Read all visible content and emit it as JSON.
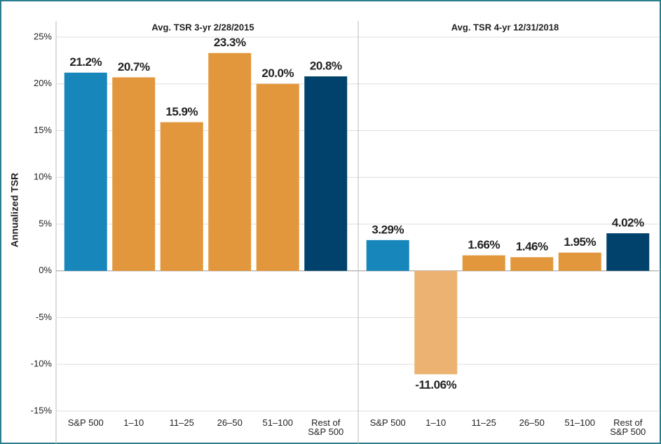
{
  "chart_data": {
    "type": "bar",
    "ylabel": "Annualized TSR",
    "ylim": [
      -15,
      25
    ],
    "yticks": [
      {
        "value": -15,
        "label": "-15%"
      },
      {
        "value": -10,
        "label": "-10%"
      },
      {
        "value": -5,
        "label": "-5%"
      },
      {
        "value": 0,
        "label": "0%"
      },
      {
        "value": 5,
        "label": "5%"
      },
      {
        "value": 10,
        "label": "10%"
      },
      {
        "value": 15,
        "label": "15%"
      },
      {
        "value": 20,
        "label": "20%"
      },
      {
        "value": 25,
        "label": "25%"
      }
    ],
    "grid": true,
    "categories": [
      "S&P 500",
      "1–10",
      "11–25",
      "26–50",
      "51–100",
      "Rest of S&P 500"
    ],
    "panels": [
      {
        "title": "Avg. TSR 3-yr 2/28/2015",
        "values": [
          21.2,
          20.7,
          15.9,
          23.3,
          20.0,
          20.8
        ],
        "value_labels": [
          "21.2%",
          "20.7%",
          "15.9%",
          "23.3%",
          "20.0%",
          "20.8%"
        ],
        "colors": [
          "#1786bb",
          "#e2973c",
          "#e2973c",
          "#e2973c",
          "#e2973c",
          "#00426b"
        ]
      },
      {
        "title": "Avg. TSR 4-yr 12/31/2018",
        "values": [
          3.29,
          -11.06,
          1.66,
          1.46,
          1.95,
          4.02
        ],
        "value_labels": [
          "3.29%",
          "-11.06%",
          "1.66%",
          "1.46%",
          "1.95%",
          "4.02%"
        ],
        "colors": [
          "#1786bb",
          "#ebb271",
          "#e2973c",
          "#e2973c",
          "#e2973c",
          "#00426b"
        ]
      }
    ]
  }
}
